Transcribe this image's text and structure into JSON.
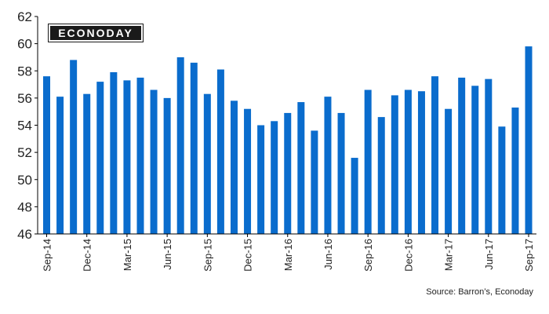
{
  "brand": {
    "logo_text": "ECONODAY",
    "color": "#1a1a1a"
  },
  "source_note": "Source: Barron’s, Econoday",
  "chart_data": {
    "type": "bar",
    "bar_color": "#0a6ccd",
    "ylim": [
      46,
      62
    ],
    "yticks": [
      46,
      48,
      50,
      52,
      54,
      56,
      58,
      60,
      62
    ],
    "categories": [
      "Sep-14",
      "Oct-14",
      "Nov-14",
      "Dec-14",
      "Jan-15",
      "Feb-15",
      "Mar-15",
      "Apr-15",
      "May-15",
      "Jun-15",
      "Jul-15",
      "Aug-15",
      "Sep-15",
      "Oct-15",
      "Nov-15",
      "Dec-15",
      "Jan-16",
      "Feb-16",
      "Mar-16",
      "Apr-16",
      "May-16",
      "Jun-16",
      "Jul-16",
      "Aug-16",
      "Sep-16",
      "Oct-16",
      "Nov-16",
      "Dec-16",
      "Jan-17",
      "Feb-17",
      "Mar-17",
      "Apr-17",
      "May-17",
      "Jun-17",
      "Jul-17",
      "Aug-17",
      "Sep-17"
    ],
    "tick_labels": [
      "Sep-14",
      "Dec-14",
      "Mar-15",
      "Jun-15",
      "Sep-15",
      "Dec-15",
      "Mar-16",
      "Jun-16",
      "Sep-16",
      "Dec-16",
      "Mar-17",
      "Jun-17",
      "Sep-17"
    ],
    "values": [
      57.6,
      56.1,
      58.8,
      56.3,
      57.2,
      57.9,
      57.3,
      57.5,
      56.6,
      56.0,
      59.0,
      58.6,
      56.3,
      58.1,
      55.8,
      55.2,
      54.0,
      54.3,
      54.9,
      55.7,
      53.6,
      56.1,
      54.9,
      51.6,
      56.6,
      54.6,
      56.2,
      56.6,
      56.5,
      57.6,
      55.2,
      57.5,
      56.9,
      57.4,
      53.9,
      55.3,
      59.8
    ]
  }
}
